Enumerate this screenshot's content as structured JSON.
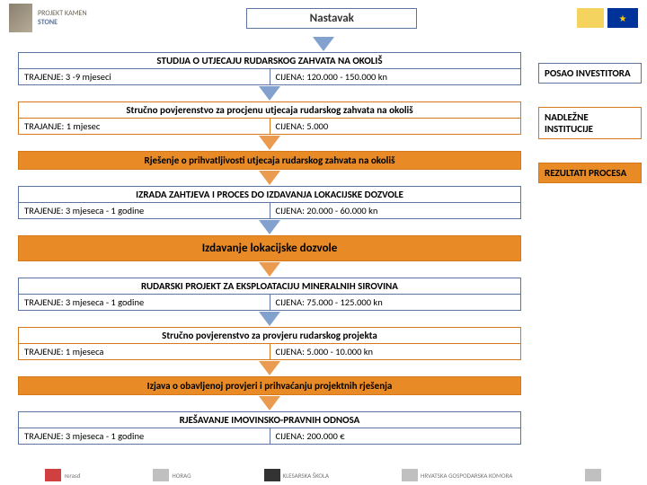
{
  "header": {
    "nastavak": "Nastavak",
    "logo_text": "PROJEKT KAMEN",
    "logo_sub": "STONE"
  },
  "legend": {
    "items": [
      {
        "label": "POSAO INVESTITORA",
        "color": "#5b74a0"
      },
      {
        "label": "NADLEŽNE INSTITUCIJE",
        "color": "#d5791a"
      },
      {
        "label": "REZULTATI PROCESA",
        "color": "#d5791a"
      }
    ]
  },
  "flow": {
    "colors": {
      "blue": "#5b74a0",
      "orange": "#d5791a",
      "orange_fill": "#e88a26"
    },
    "steps": [
      {
        "type": "box",
        "border": "blue",
        "title": "STUDIJA O UTJECAJU RUDARSKOG ZAHVATA NA OKOLIŠ",
        "left": "TRAJENJE:  3 -9 mjeseci",
        "right": "CIJENA: 120.000 - 150.000 kn"
      },
      {
        "type": "arrow",
        "color": "blue"
      },
      {
        "type": "box",
        "border": "orange",
        "title": "Stručno povjerenstvo za procjenu utjecaja rudarskog zahvata na okoliš",
        "left": "TRAJANJE: 1 mjesec",
        "right": "CIJENA: 5.000"
      },
      {
        "type": "arrow",
        "color": "orange"
      },
      {
        "type": "single",
        "border": "orange",
        "fill": true,
        "title": "Rješenje o prihvatljivosti utjecaja rudarskog zahvata na okoliš"
      },
      {
        "type": "arrow",
        "color": "orange"
      },
      {
        "type": "box",
        "border": "blue",
        "title": "IZRADA ZAHTJEVA I PROCES  DO IZDAVANJA LOKACIJSKE DOZVOLE",
        "left": "TRAJENJE: 3 mjeseca - 1  godine",
        "right": "CIJENA: 20.000 - 60.000 kn"
      },
      {
        "type": "arrow",
        "color": "blue"
      },
      {
        "type": "single",
        "border": "orange",
        "fill": true,
        "big": true,
        "title": "Izdavanje lokacijske dozvole"
      },
      {
        "type": "arrow",
        "color": "orange"
      },
      {
        "type": "box",
        "border": "blue",
        "title": "RUDARSKI PROJEKT ZA EKSPLOATACIJU MINERALNIH SIROVINA",
        "left": "TRAJENJE: 3 mjeseca - 1  godine",
        "right": "CIJENA: 75.000 - 125.000 kn"
      },
      {
        "type": "arrow",
        "color": "blue"
      },
      {
        "type": "box",
        "border": "orange",
        "title": "Stručno povjerenstvo za provjeru rudarskog projekta",
        "left": "TRAJENJE: 1 mjeseca",
        "right": "CIJENA: 5.000 - 10.000 kn"
      },
      {
        "type": "arrow",
        "color": "orange"
      },
      {
        "type": "single",
        "border": "orange",
        "fill": true,
        "title": "Izjava o obavljenoj provjeri i prihvaćanju projektnih rješenja"
      },
      {
        "type": "arrow",
        "color": "orange"
      },
      {
        "type": "box",
        "border": "blue",
        "title": "RJEŠAVANJE IMOVINSKO-PRAVNIH ODNOSA",
        "left": "TRAJENJE: 3 mjeseca - 1 godine",
        "right": "CIJENA: 200.000 €"
      }
    ]
  },
  "footer": {
    "logos": [
      "rerasd",
      "HORAG",
      "KLESARSKA ŠKOLA",
      "HRVATSKA GOSPODARSKA KOMORA",
      ""
    ]
  }
}
